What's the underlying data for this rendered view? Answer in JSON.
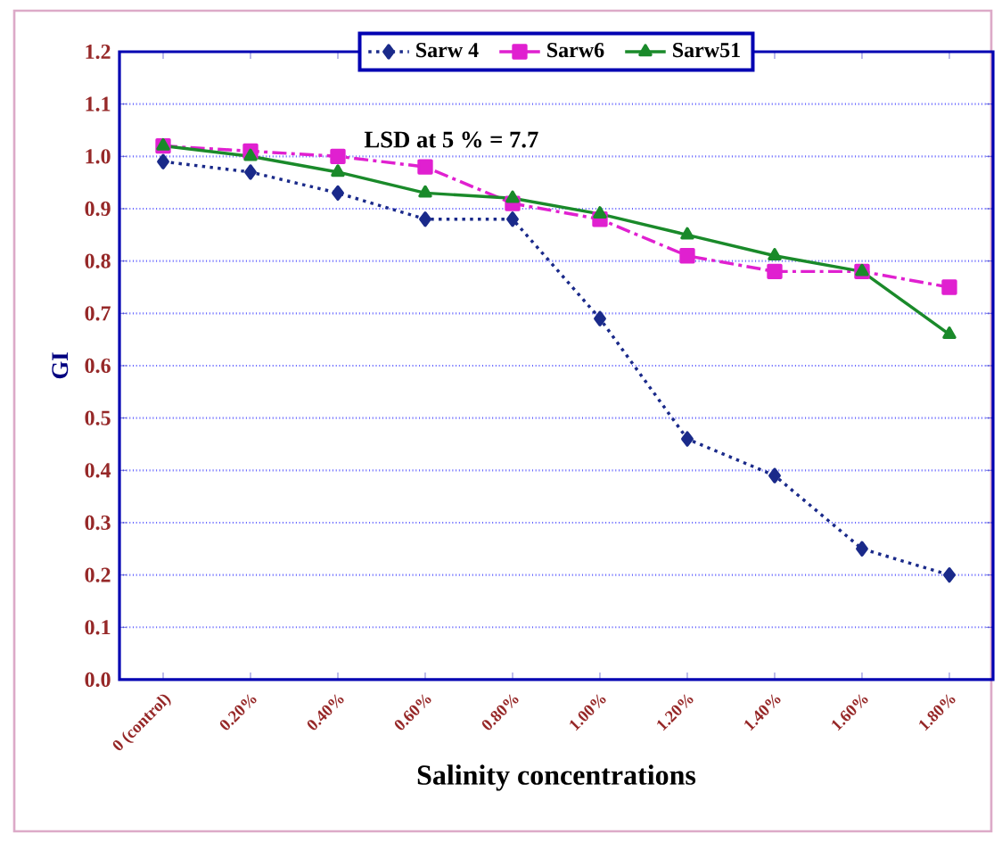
{
  "chart_data": {
    "type": "line",
    "xlabel": "Salinity concentrations",
    "ylabel": "GI",
    "categories": [
      "0 (control)",
      "0.20%",
      "0.40%",
      "0.60%",
      "0.80%",
      "1.00%",
      "1.20%",
      "1.40%",
      "1.60%",
      "1.80%"
    ],
    "series": [
      {
        "name": "Sarw 4",
        "color": "#1a2a8a",
        "marker": "diamond",
        "line_style": "dotted",
        "values": [
          0.99,
          0.97,
          0.93,
          0.88,
          0.88,
          0.69,
          0.46,
          0.39,
          0.25,
          0.2
        ]
      },
      {
        "name": "Sarw6",
        "color": "#e020d0",
        "marker": "square",
        "line_style": "dashed",
        "values": [
          1.02,
          1.01,
          1.0,
          0.98,
          0.91,
          0.88,
          0.81,
          0.78,
          0.78,
          0.75
        ]
      },
      {
        "name": "Sarw51",
        "color": "#1a8a2a",
        "marker": "triangle",
        "line_style": "solid",
        "values": [
          1.02,
          1.0,
          0.97,
          0.93,
          0.92,
          0.89,
          0.85,
          0.81,
          0.78,
          0.66
        ]
      }
    ],
    "ylim": [
      0,
      1.2
    ],
    "yticks": [
      {
        "value": 0,
        "label": "0.0"
      },
      0.1,
      0.2,
      0.3,
      0.4,
      0.5,
      0.6,
      0.7,
      0.8,
      0.9,
      {
        "value": 1,
        "label": "1.0"
      },
      1.1,
      1.2
    ],
    "grid": "y",
    "legend": "top",
    "annotations": [
      "LSD at 5 % = 7.7"
    ]
  }
}
